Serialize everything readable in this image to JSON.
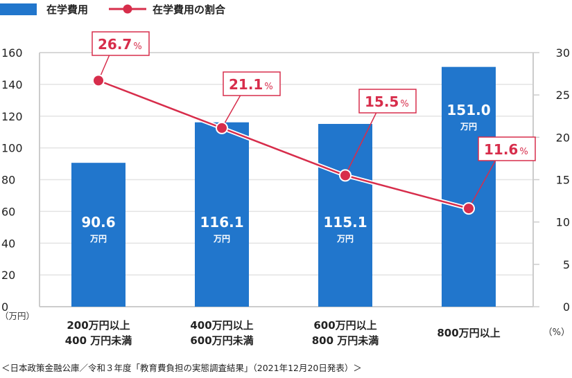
{
  "legend": {
    "bar_label": "在学費用",
    "line_label": "在学費用の割合"
  },
  "colors": {
    "bar": "#2176cc",
    "line": "#d72d4b",
    "grid": "#e3e3e3",
    "axis": "#cccccc"
  },
  "left_axis": {
    "unit": "（万円）",
    "ticks": [
      "0",
      "20",
      "40",
      "60",
      "80",
      "100",
      "120",
      "140",
      "160"
    ]
  },
  "right_axis": {
    "unit": "（%）",
    "ticks": [
      "0",
      "5",
      "10",
      "15",
      "20",
      "25",
      "30"
    ]
  },
  "footer": "＜日本政策金融公庫／令和３年度「教育費負担の実態調査結果」（2021年12月20日発表）＞",
  "chart_data": {
    "type": "bar+line",
    "title": "",
    "categories": [
      [
        "200万円以上",
        "400 万円未満"
      ],
      [
        "400万円以上",
        "600万円未満"
      ],
      [
        "600万円以上",
        "800 万円未満"
      ],
      [
        "800万円以上"
      ]
    ],
    "series": [
      {
        "name": "在学費用",
        "type": "bar",
        "axis": "left",
        "unit": "万円",
        "values": [
          90.6,
          116.1,
          115.1,
          151.0
        ],
        "labels": [
          "90.6",
          "116.1",
          "115.1",
          "151.0"
        ]
      },
      {
        "name": "在学費用の割合",
        "type": "line",
        "axis": "right",
        "unit": "%",
        "values": [
          26.7,
          21.1,
          15.5,
          11.6
        ],
        "labels": [
          "26.7",
          "21.1",
          "15.5",
          "11.6"
        ]
      }
    ],
    "ylabel_left": "（万円）",
    "ylabel_right": "（%）",
    "ylim_left": [
      0,
      160
    ],
    "ylim_right": [
      0,
      30
    ],
    "grid": true,
    "legend_position": "top-left"
  }
}
